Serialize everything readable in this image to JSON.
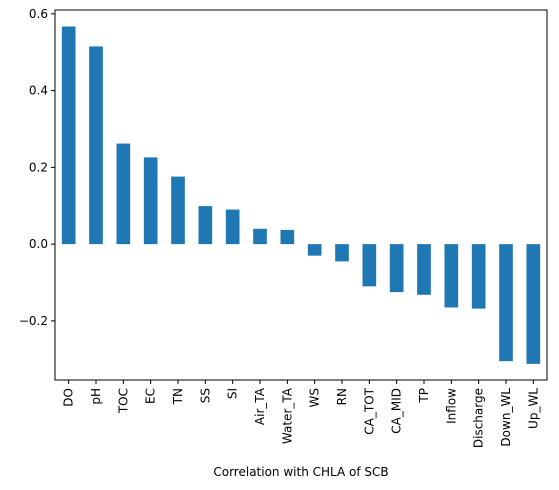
{
  "chart_data": {
    "type": "bar",
    "title": "",
    "xlabel": "Correlation with CHLA of SCB",
    "ylabel": "",
    "categories": [
      "DO",
      "pH",
      "TOC",
      "EC",
      "TN",
      "SS",
      "SI",
      "Air_TA",
      "Water_TA",
      "WS",
      "RN",
      "CA_TOT",
      "CA_MID",
      "TP",
      "Inflow",
      "Discharge",
      "Down_WL",
      "Up_WL"
    ],
    "values": [
      0.567,
      0.515,
      0.262,
      0.226,
      0.176,
      0.099,
      0.09,
      0.04,
      0.037,
      -0.03,
      -0.045,
      -0.11,
      -0.125,
      -0.132,
      -0.165,
      -0.168,
      -0.305,
      -0.312
    ],
    "ylim": [
      -0.354,
      0.61
    ],
    "yticks": [
      -0.2,
      0.0,
      0.2,
      0.4,
      0.6
    ],
    "ytick_labels": [
      "−0.2",
      "0.0",
      "0.2",
      "0.4",
      "0.6"
    ],
    "bar_color": "#1f77b4",
    "grid": false,
    "legend": "none"
  }
}
